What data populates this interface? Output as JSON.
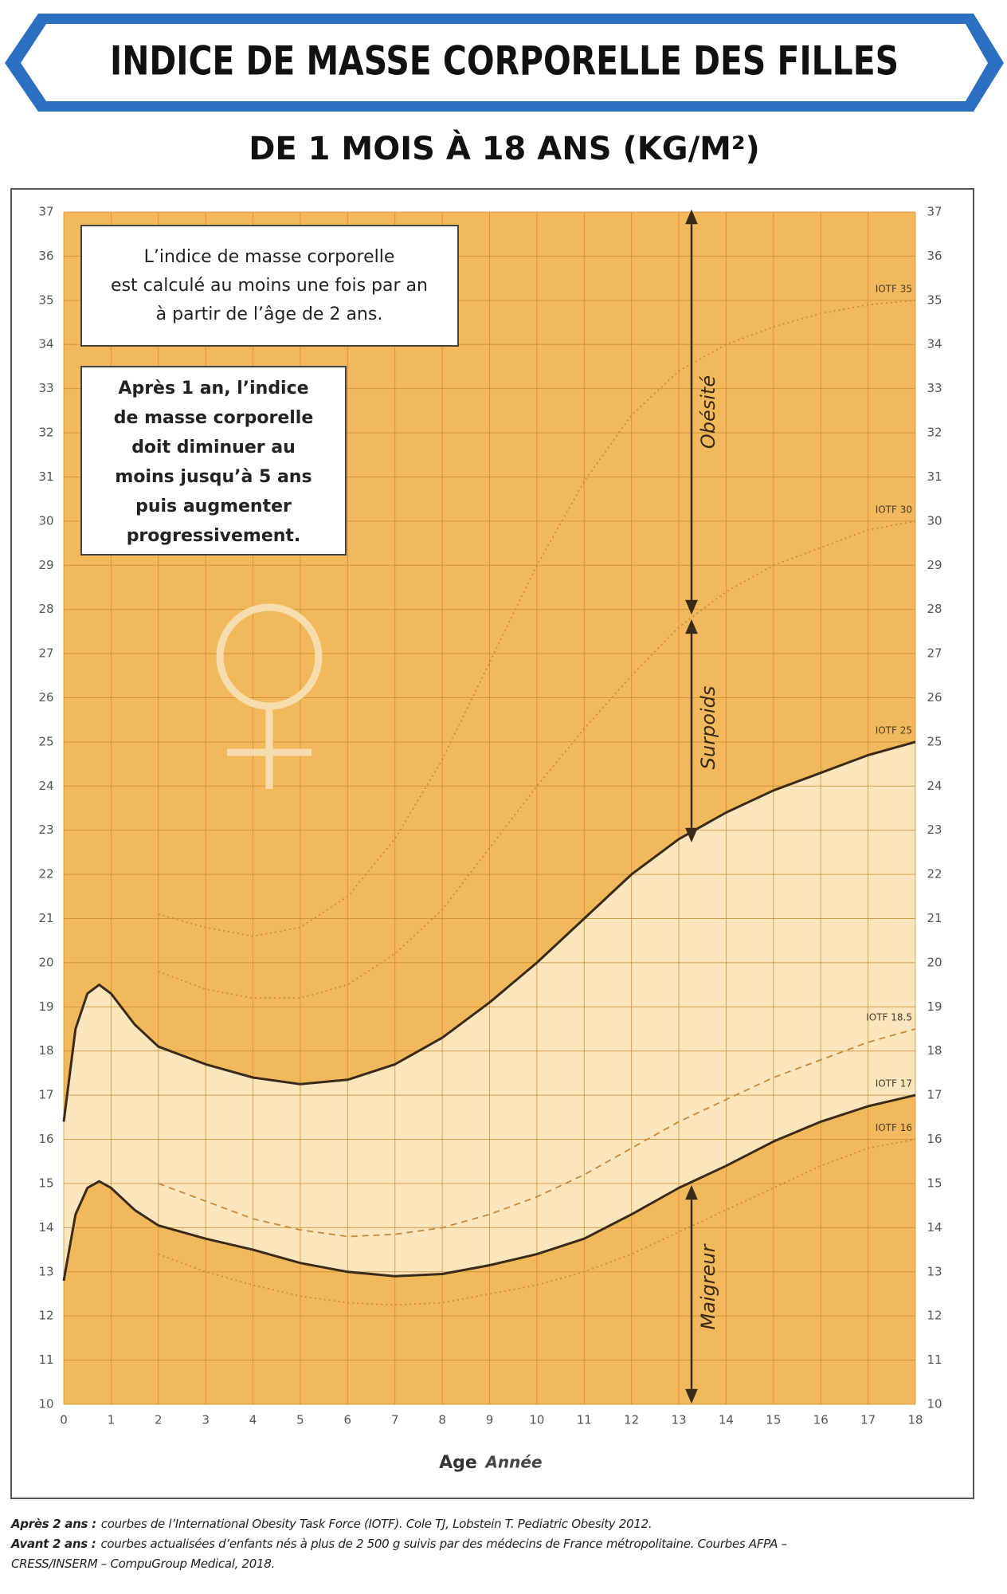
{
  "chart_data": {
    "type": "line",
    "title": "INDICE DE MASSE CORPORELLE DES FILLES",
    "subtitle": "DE 1 MOIS À 18 ANS (KG/M²)",
    "x_label": "Age",
    "x_label_unit": "Année",
    "xlim": [
      0,
      18
    ],
    "xticks": [
      0,
      1,
      2,
      3,
      4,
      5,
      6,
      7,
      8,
      9,
      10,
      11,
      12,
      13,
      14,
      15,
      16,
      17,
      18
    ],
    "ylim": [
      10,
      37
    ],
    "yticks": [
      10,
      11,
      12,
      13,
      14,
      15,
      16,
      17,
      18,
      19,
      20,
      21,
      22,
      23,
      24,
      25,
      26,
      27,
      28,
      29,
      30,
      31,
      32,
      33,
      34,
      35,
      36,
      37
    ],
    "grid": true,
    "x": [
      0,
      0.25,
      0.5,
      0.75,
      1,
      1.5,
      2,
      3,
      4,
      5,
      6,
      7,
      8,
      9,
      10,
      11,
      12,
      13,
      14,
      15,
      16,
      17,
      18
    ],
    "series": [
      {
        "name": "IOTF 35",
        "color": "#c9893c",
        "line_style": "dotted",
        "values": [
          null,
          null,
          null,
          null,
          null,
          null,
          21.1,
          20.8,
          20.6,
          20.8,
          21.5,
          22.8,
          24.6,
          26.8,
          29.0,
          30.9,
          32.4,
          33.4,
          34.0,
          34.4,
          34.7,
          34.9,
          35.0
        ]
      },
      {
        "name": "IOTF 30",
        "color": "#c9893c",
        "line_style": "dotted",
        "values": [
          null,
          null,
          null,
          null,
          null,
          null,
          19.8,
          19.4,
          19.2,
          19.2,
          19.5,
          20.2,
          21.2,
          22.6,
          24.0,
          25.3,
          26.5,
          27.6,
          28.4,
          29.0,
          29.4,
          29.8,
          30.0
        ]
      },
      {
        "name": "IOTF 25",
        "color": "#3a2a1a",
        "line_style": "solid",
        "values": [
          16.4,
          18.5,
          19.3,
          19.5,
          19.3,
          18.6,
          18.1,
          17.7,
          17.4,
          17.25,
          17.35,
          17.7,
          18.3,
          19.1,
          20.0,
          21.0,
          22.0,
          22.8,
          23.4,
          23.9,
          24.3,
          24.7,
          25.0
        ]
      },
      {
        "name": "IOTF 18.5",
        "color": "#c9893c",
        "line_style": "dashed",
        "values": [
          null,
          null,
          null,
          null,
          null,
          null,
          15.0,
          14.6,
          14.2,
          13.95,
          13.8,
          13.85,
          14.0,
          14.3,
          14.7,
          15.2,
          15.8,
          16.4,
          16.9,
          17.4,
          17.8,
          18.2,
          18.5
        ]
      },
      {
        "name": "IOTF 17",
        "color": "#3a2a1a",
        "line_style": "solid",
        "values": [
          12.8,
          14.3,
          14.9,
          15.05,
          14.9,
          14.4,
          14.05,
          13.75,
          13.5,
          13.2,
          13.0,
          12.9,
          12.95,
          13.15,
          13.4,
          13.75,
          14.3,
          14.9,
          15.4,
          15.95,
          16.4,
          16.75,
          17.0
        ]
      },
      {
        "name": "IOTF 16",
        "color": "#c9893c",
        "line_style": "dotted",
        "values": [
          null,
          null,
          null,
          null,
          null,
          null,
          13.4,
          13.0,
          12.7,
          12.45,
          12.3,
          12.25,
          12.3,
          12.5,
          12.7,
          13.0,
          13.4,
          13.9,
          14.4,
          14.9,
          15.4,
          15.8,
          16.0
        ]
      }
    ],
    "zones": [
      "Obésité",
      "Surpoids",
      "Maigreur"
    ],
    "info_box_1": [
      "L’indice de masse corporelle",
      "est calculé au moins une fois par an",
      "à partir de l’âge de 2 ans."
    ],
    "info_box_2": [
      "Après 1 an, l’indice",
      "de masse corporelle",
      "doit diminuer au",
      "moins jusqu’à 5 ans",
      "puis augmenter",
      "progressivement."
    ],
    "footnotes": [
      {
        "lead": "Après 2 ans :",
        "text": "courbes de l’International Obesity Task Force (IOTF). Cole TJ, Lobstein T. Pediatric Obesity 2012."
      },
      {
        "lead": "Avant 2 ans :",
        "text": "courbes actualisées d’enfants nés à plus de 2 500 g suivis par des médecins de France métropolitaine. Courbes AFPA –"
      },
      {
        "text": "CRESS/INSERM – CompuGroup Medical, 2018."
      }
    ]
  }
}
